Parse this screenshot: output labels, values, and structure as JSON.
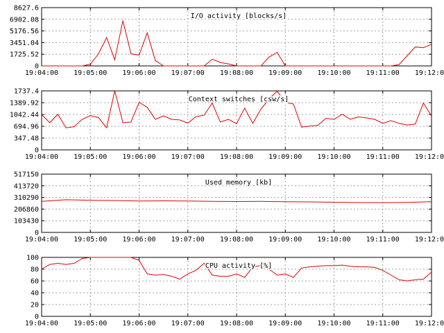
{
  "chart_data": [
    {
      "type": "line",
      "title": "I/O activity [blocks/s]",
      "ylim": [
        0,
        8627.6
      ],
      "yticks": [
        "8627.6",
        "6902.08",
        "5176.56",
        "3451.04",
        "1725.52",
        "0"
      ],
      "xlim": [
        "19:04:00",
        "19:12:00"
      ],
      "xticks": [
        "19:04:00",
        "19:05:00",
        "19:06:00",
        "19:07:00",
        "19:08:00",
        "19:09:00",
        "19:10:00",
        "19:11:00",
        "19:12:00"
      ],
      "grid": true,
      "color": "#e00000",
      "x": [
        "19:04:00",
        "19:04:10",
        "19:04:20",
        "19:04:30",
        "19:04:40",
        "19:04:50",
        "19:05:00",
        "19:05:10",
        "19:05:20",
        "19:05:30",
        "19:05:40",
        "19:05:50",
        "19:06:00",
        "19:06:10",
        "19:06:20",
        "19:06:30",
        "19:06:40",
        "19:06:50",
        "19:07:00",
        "19:07:10",
        "19:07:20",
        "19:07:30",
        "19:07:40",
        "19:07:50",
        "19:08:00",
        "19:08:10",
        "19:08:20",
        "19:08:30",
        "19:08:40",
        "19:08:50",
        "19:09:00",
        "19:09:10",
        "19:09:20",
        "19:09:30",
        "19:09:40",
        "19:09:50",
        "19:10:00",
        "19:10:10",
        "19:10:20",
        "19:10:30",
        "19:10:40",
        "19:10:50",
        "19:11:00",
        "19:11:10",
        "19:11:20",
        "19:11:30",
        "19:11:40",
        "19:11:50",
        "19:12:00"
      ],
      "values": [
        0,
        0,
        0,
        0,
        0,
        0,
        250,
        1800,
        4200,
        900,
        6700,
        1800,
        1600,
        4900,
        800,
        0,
        0,
        0,
        0,
        0,
        0,
        1000,
        500,
        300,
        0,
        0,
        0,
        0,
        1300,
        2000,
        0,
        0,
        0,
        0,
        0,
        0,
        0,
        0,
        0,
        0,
        0,
        0,
        0,
        0,
        200,
        1500,
        2800,
        2700,
        3200
      ]
    },
    {
      "type": "line",
      "title": "Context switches [csw/s]",
      "ylim": [
        0,
        1737.4
      ],
      "yticks": [
        "1737.4",
        "1389.92",
        "1042.44",
        "694.96",
        "347.48",
        "0"
      ],
      "xlim": [
        "19:04:00",
        "19:12:00"
      ],
      "xticks": [
        "19:04:00",
        "19:05:00",
        "19:06:00",
        "19:07:00",
        "19:08:00",
        "19:09:00",
        "19:10:00",
        "19:11:00",
        "19:12:00"
      ],
      "grid": true,
      "color": "#e00000",
      "x": [
        "19:04:00",
        "19:04:10",
        "19:04:20",
        "19:04:30",
        "19:04:40",
        "19:04:50",
        "19:05:00",
        "19:05:10",
        "19:05:20",
        "19:05:30",
        "19:05:40",
        "19:05:50",
        "19:06:00",
        "19:06:10",
        "19:06:20",
        "19:06:30",
        "19:06:40",
        "19:06:50",
        "19:07:00",
        "19:07:10",
        "19:07:20",
        "19:07:30",
        "19:07:40",
        "19:07:50",
        "19:08:00",
        "19:08:10",
        "19:08:20",
        "19:08:30",
        "19:08:40",
        "19:08:50",
        "19:09:00",
        "19:09:10",
        "19:09:20",
        "19:09:30",
        "19:09:40",
        "19:09:50",
        "19:10:00",
        "19:10:10",
        "19:10:20",
        "19:10:30",
        "19:10:40",
        "19:10:50",
        "19:11:00",
        "19:11:10",
        "19:11:20",
        "19:11:30",
        "19:11:40",
        "19:11:50",
        "19:12:00"
      ],
      "values": [
        1040,
        800,
        1050,
        650,
        680,
        900,
        1010,
        950,
        650,
        1740,
        800,
        820,
        1400,
        1250,
        900,
        1000,
        900,
        880,
        790,
        980,
        1020,
        1380,
        820,
        900,
        770,
        1230,
        780,
        1200,
        1500,
        1730,
        1400,
        1350,
        670,
        700,
        720,
        930,
        900,
        1050,
        900,
        970,
        940,
        900,
        780,
        860,
        780,
        730,
        760,
        1380,
        1000
      ]
    },
    {
      "type": "line",
      "title": "Used memory [kb]",
      "ylim": [
        0,
        517150
      ],
      "yticks": [
        "517150",
        "413720",
        "310290",
        "206860",
        "103430",
        "0"
      ],
      "xlim": [
        "19:04:00",
        "19:12:00"
      ],
      "xticks": [
        "19:04:00",
        "19:05:00",
        "19:06:00",
        "19:07:00",
        "19:08:00",
        "19:09:00",
        "19:10:00",
        "19:11:00",
        "19:12:00"
      ],
      "grid": true,
      "color": "#e00000",
      "x": [
        "19:04:00",
        "19:04:30",
        "19:05:00",
        "19:05:30",
        "19:06:00",
        "19:06:30",
        "19:07:00",
        "19:07:30",
        "19:08:00",
        "19:08:30",
        "19:09:00",
        "19:09:30",
        "19:10:00",
        "19:10:30",
        "19:11:00",
        "19:11:30",
        "19:12:00"
      ],
      "values": [
        275000,
        290000,
        285000,
        283000,
        278000,
        280000,
        279000,
        276000,
        274000,
        275000,
        273000,
        271000,
        268000,
        265000,
        264000,
        266000,
        272000
      ]
    },
    {
      "type": "line",
      "title": "CPU activity [%]",
      "ylim": [
        0,
        100
      ],
      "yticks": [
        "100",
        "80",
        "60",
        "40",
        "20",
        "0"
      ],
      "xlim": [
        "19:04:00",
        "19:12:00"
      ],
      "xticks": [
        "19:04:00",
        "19:05:00",
        "19:06:00",
        "19:07:00",
        "19:08:00",
        "19:09:00",
        "19:10:00",
        "19:11:00",
        "19:12:00"
      ],
      "grid": true,
      "color": "#e00000",
      "x": [
        "19:04:00",
        "19:04:10",
        "19:04:20",
        "19:04:30",
        "19:04:40",
        "19:04:50",
        "19:05:00",
        "19:05:10",
        "19:05:20",
        "19:05:30",
        "19:05:40",
        "19:05:50",
        "19:06:00",
        "19:06:10",
        "19:06:20",
        "19:06:30",
        "19:06:40",
        "19:06:50",
        "19:07:00",
        "19:07:10",
        "19:07:20",
        "19:07:30",
        "19:07:40",
        "19:07:50",
        "19:08:00",
        "19:08:10",
        "19:08:20",
        "19:08:30",
        "19:08:40",
        "19:08:50",
        "19:09:00",
        "19:09:10",
        "19:09:20",
        "19:09:30",
        "19:09:40",
        "19:09:50",
        "19:10:00",
        "19:10:10",
        "19:10:20",
        "19:10:30",
        "19:10:40",
        "19:10:50",
        "19:11:00",
        "19:11:10",
        "19:11:20",
        "19:11:30",
        "19:11:40",
        "19:11:50",
        "19:12:00"
      ],
      "values": [
        80,
        88,
        90,
        88,
        90,
        98,
        100,
        100,
        100,
        100,
        100,
        100,
        95,
        72,
        70,
        71,
        68,
        63,
        72,
        78,
        90,
        70,
        68,
        68,
        72,
        66,
        84,
        86,
        80,
        70,
        72,
        66,
        82,
        84,
        85,
        86,
        86,
        87,
        85,
        84,
        84,
        83,
        78,
        70,
        62,
        60,
        62,
        63,
        75
      ]
    }
  ]
}
